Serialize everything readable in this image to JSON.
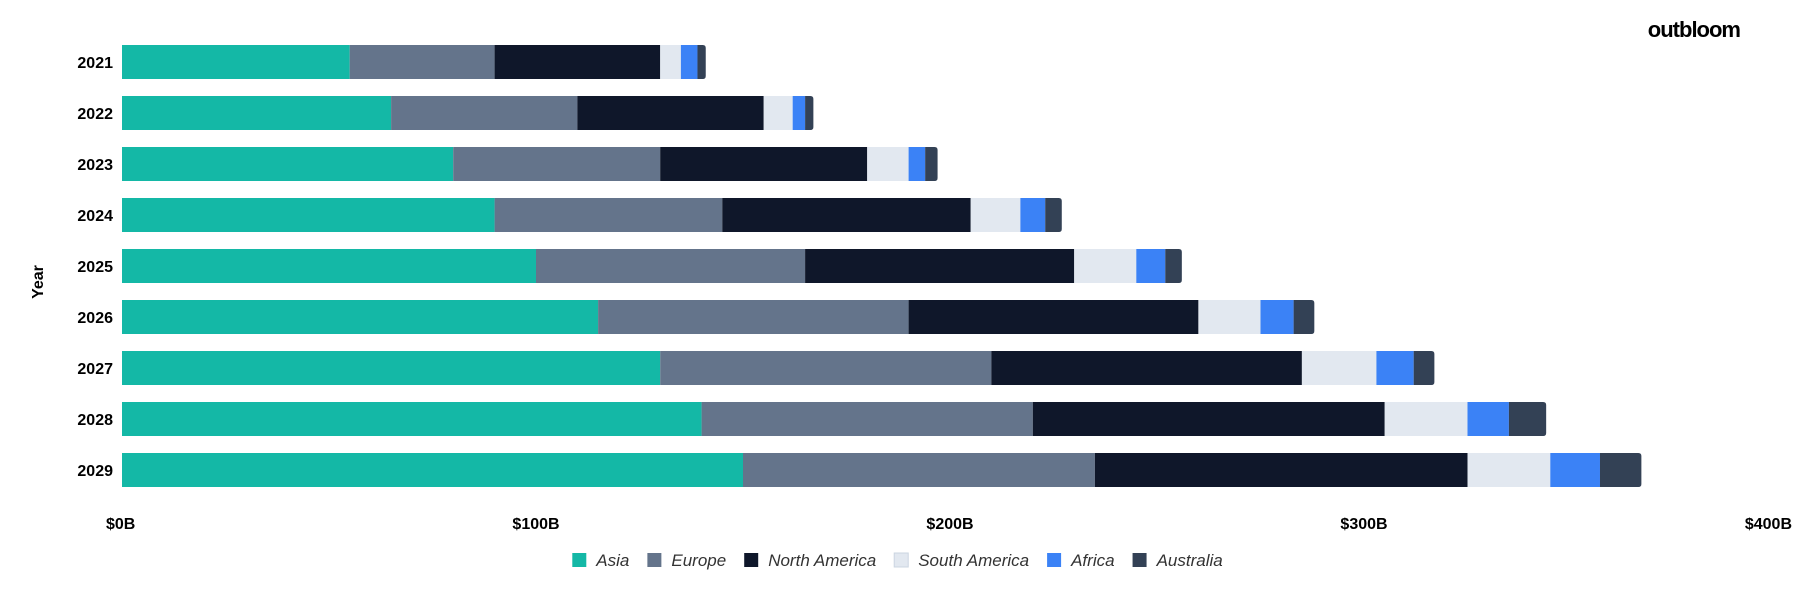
{
  "brand": {
    "logo_text": "outbloom"
  },
  "chart_data": {
    "type": "bar",
    "orientation": "horizontal",
    "stacked": true,
    "title": "",
    "xlabel": "",
    "ylabel": "Year",
    "categories": [
      "2021",
      "2022",
      "2023",
      "2024",
      "2025",
      "2026",
      "2027",
      "2028",
      "2029"
    ],
    "xlim": [
      0,
      400
    ],
    "x_ticks": [
      0,
      100,
      200,
      300,
      400
    ],
    "x_tick_labels": [
      "$0B",
      "$100B",
      "$200B",
      "$300B",
      "$400B"
    ],
    "grid": false,
    "legend_position": "bottom",
    "series": [
      {
        "name": "Asia",
        "color": "#14b8a6",
        "values": [
          55,
          65,
          80,
          90,
          100,
          115,
          130,
          140,
          150
        ]
      },
      {
        "name": "Europe",
        "color": "#64748b",
        "values": [
          35,
          45,
          50,
          55,
          65,
          75,
          80,
          80,
          85
        ]
      },
      {
        "name": "North America",
        "color": "#0f172a",
        "values": [
          40,
          45,
          50,
          60,
          65,
          70,
          75,
          85,
          90
        ]
      },
      {
        "name": "South America",
        "color": "#e2e8f0",
        "values": [
          5,
          7,
          10,
          12,
          15,
          15,
          18,
          20,
          20
        ]
      },
      {
        "name": "Africa",
        "color": "#3b82f6",
        "values": [
          4,
          3,
          4,
          6,
          7,
          8,
          9,
          10,
          12
        ]
      },
      {
        "name": "Australia",
        "color": "#334155",
        "values": [
          2,
          2,
          3,
          4,
          4,
          5,
          5,
          9,
          10
        ]
      }
    ]
  }
}
